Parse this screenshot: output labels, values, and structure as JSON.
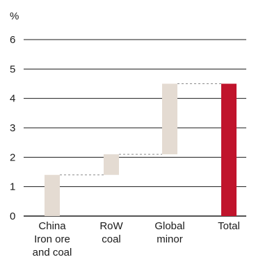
{
  "chart_data": {
    "type": "bar",
    "subtype": "waterfall",
    "ylabel": "%",
    "ylim": [
      0,
      6
    ],
    "yticks": [
      "0",
      "1",
      "2",
      "3",
      "4",
      "5",
      "6"
    ],
    "grid": true,
    "categories": [
      [
        "China",
        "Iron ore",
        "and coal"
      ],
      [
        "RoW",
        "coal"
      ],
      [
        "Global",
        "minor"
      ],
      [
        "Total"
      ]
    ],
    "bars": [
      {
        "start": 0,
        "end": 1.4,
        "kind": "increment"
      },
      {
        "start": 1.4,
        "end": 2.1,
        "kind": "increment"
      },
      {
        "start": 2.1,
        "end": 4.5,
        "kind": "increment"
      },
      {
        "start": 0,
        "end": 4.5,
        "kind": "total"
      }
    ],
    "colors": {
      "increment": "#e4dbd2",
      "total": "#c0142c",
      "grid": "#1a1a1a",
      "connector": "#8a8a8a"
    }
  }
}
